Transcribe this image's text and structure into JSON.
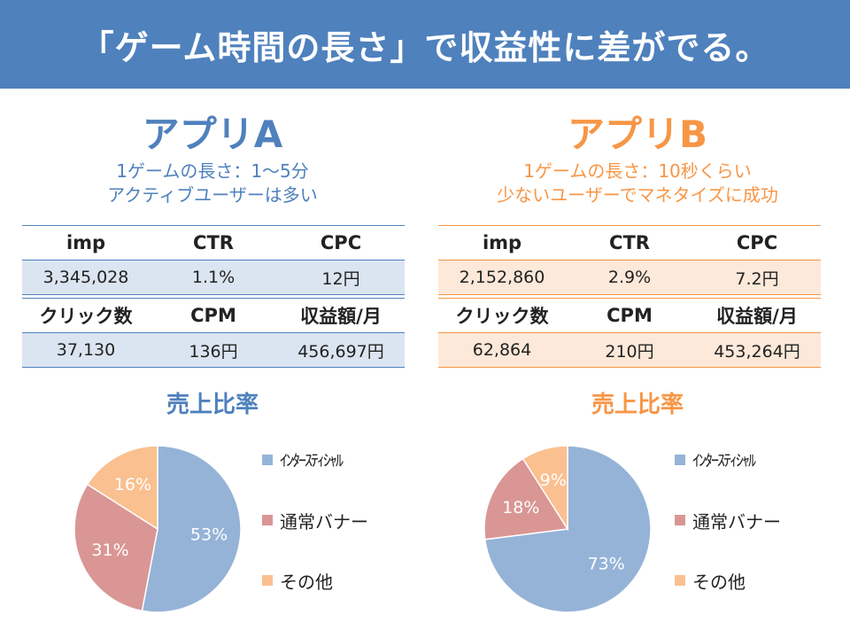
{
  "title": "「ゲーム時間の長さ」で収益性に差がでる。",
  "colors": {
    "title_bg": "#4f81bd",
    "app_a_accent": "#4f81bd",
    "app_b_accent": "#f79646",
    "app_a_row_bg": "#dbe5f1",
    "app_b_row_bg": "#fde9d9",
    "interstitial": "#95b3d7",
    "banner": "#d99694",
    "other": "#fac090"
  },
  "apps": [
    {
      "name": "アプリA",
      "desc_line1": "1ゲームの長さ：1〜5分",
      "desc_line2": "アクティブユーザーは多い",
      "headers1": [
        "imp",
        "CTR",
        "CPC"
      ],
      "values1": [
        "3,345,028",
        "1.1%",
        "12円"
      ],
      "headers2": [
        "クリック数",
        "CPM",
        "収益額/月"
      ],
      "values2": [
        "37,130",
        "136円",
        "456,697円"
      ],
      "chart_title": "売上比率",
      "pie_labels": [
        "53%",
        "31%",
        "16%"
      ]
    },
    {
      "name": "アプリB",
      "desc_line1": "1ゲームの長さ：10秒くらい",
      "desc_line2": "少ないユーザーでマネタイズに成功",
      "headers1": [
        "imp",
        "CTR",
        "CPC"
      ],
      "values1": [
        "2,152,860",
        "2.9%",
        "7.2円"
      ],
      "headers2": [
        "クリック数",
        "CPM",
        "収益額/月"
      ],
      "values2": [
        "62,864",
        "210円",
        "453,264円"
      ],
      "chart_title": "売上比率",
      "pie_labels": [
        "73%",
        "18%",
        "9%"
      ]
    }
  ],
  "legend": [
    "ｲﾝﾀｰｽﾃｨｼｬﾙ",
    "通常バナー",
    "その他"
  ],
  "chart_data": [
    {
      "type": "pie",
      "title": "売上比率",
      "categories": [
        "ｲﾝﾀｰｽﾃｨｼｬﾙ",
        "通常バナー",
        "その他"
      ],
      "values": [
        53,
        31,
        16
      ],
      "legend_position": "right"
    },
    {
      "type": "pie",
      "title": "売上比率",
      "categories": [
        "ｲﾝﾀｰｽﾃｨｼｬﾙ",
        "通常バナー",
        "その他"
      ],
      "values": [
        73,
        18,
        9
      ],
      "legend_position": "right"
    }
  ]
}
